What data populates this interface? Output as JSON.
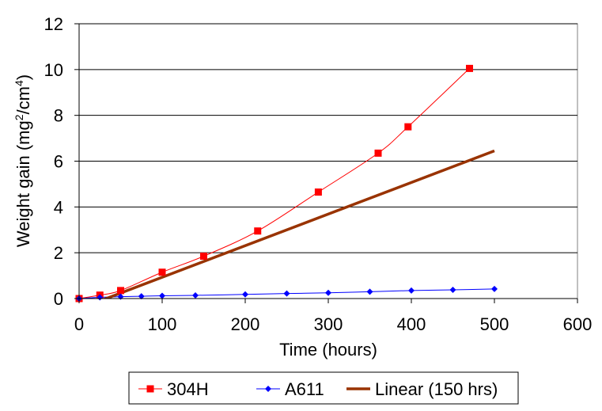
{
  "chart_data": {
    "type": "line",
    "xlabel": "Time (hours)",
    "ylabel": "Weight gain (mg2/cm4)",
    "xlim": [
      0,
      600
    ],
    "ylim": [
      0,
      12
    ],
    "x_ticks": [
      0,
      100,
      200,
      300,
      400,
      500,
      600
    ],
    "y_ticks": [
      0,
      2,
      4,
      6,
      8,
      10,
      12
    ],
    "grid": "horizontal",
    "legend": "bottom",
    "series": [
      {
        "name": "304H",
        "color": "#ff0000",
        "marker": "square",
        "x": [
          0,
          25,
          50,
          100,
          150,
          215,
          288,
          360,
          396,
          470
        ],
        "y": [
          0.0,
          0.15,
          0.35,
          1.15,
          1.85,
          2.95,
          4.65,
          6.35,
          7.5,
          10.05
        ]
      },
      {
        "name": "A611",
        "color": "#0000ff",
        "marker": "diamond",
        "x": [
          0,
          25,
          50,
          75,
          100,
          140,
          200,
          250,
          300,
          350,
          400,
          450,
          500
        ],
        "y": [
          0.0,
          0.05,
          0.08,
          0.1,
          0.12,
          0.14,
          0.18,
          0.22,
          0.25,
          0.3,
          0.35,
          0.38,
          0.42
        ]
      },
      {
        "name": "Linear (150 hrs)",
        "color": "#993300",
        "marker": "none",
        "x": [
          0,
          500
        ],
        "y": [
          -0.45,
          6.45
        ]
      }
    ]
  }
}
